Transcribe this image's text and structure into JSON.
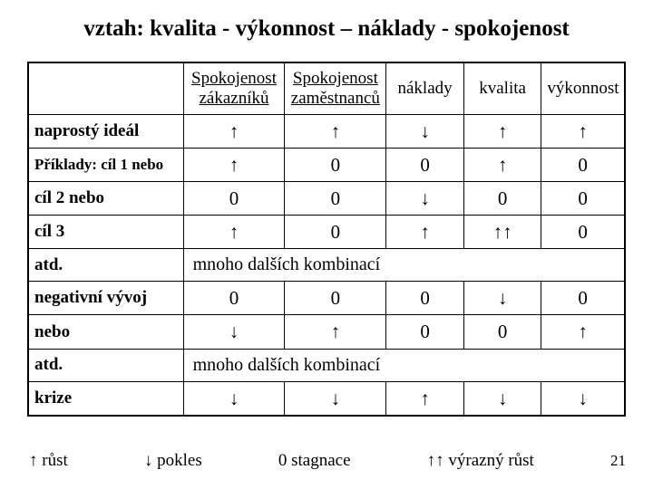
{
  "title": "vztah: kvalita - výkonnost – náklady - spokojenost",
  "columns": [
    "",
    "Spokojenost zákazníků",
    "Spokojenost zaměstnanců",
    "náklady",
    "kvalita",
    "výkonnost"
  ],
  "rows": [
    {
      "label": "naprostý ideál",
      "cells": [
        "↑",
        "↑",
        "↓",
        "↑",
        "↑"
      ]
    },
    {
      "label": "Příklady: cíl 1 nebo",
      "small": true,
      "cells": [
        "↑",
        "0",
        "0",
        "↑",
        "0"
      ]
    },
    {
      "label": "cíl 2 nebo",
      "cells": [
        "0",
        "0",
        "↓",
        "0",
        "0"
      ]
    },
    {
      "label": "cíl 3",
      "cells": [
        "↑",
        "0",
        "↑",
        "↑↑",
        "0"
      ]
    },
    {
      "label": "atd.",
      "span": "mnoho dalších kombinací"
    },
    {
      "label": "negativní vývoj",
      "cells": [
        "0",
        "0",
        "0",
        "↓",
        "0"
      ]
    },
    {
      "label": "nebo",
      "cells": [
        "↓",
        "↑",
        "0",
        "0",
        "↑"
      ]
    },
    {
      "label": "atd.",
      "span": "mnoho dalších kombinací"
    },
    {
      "label": "krize",
      "cells": [
        "↓",
        "↓",
        "↑",
        "↓",
        "↓"
      ]
    }
  ],
  "legend": {
    "grow": "↑ růst",
    "fall": "↓ pokles",
    "stag": "0 stagnace",
    "biggrow": "↑↑ výrazný růst",
    "page": "21"
  },
  "style": {
    "underline_cols": [
      1,
      2
    ],
    "colors": {
      "text": "#000000",
      "bg": "#ffffff",
      "border": "#000000"
    }
  }
}
